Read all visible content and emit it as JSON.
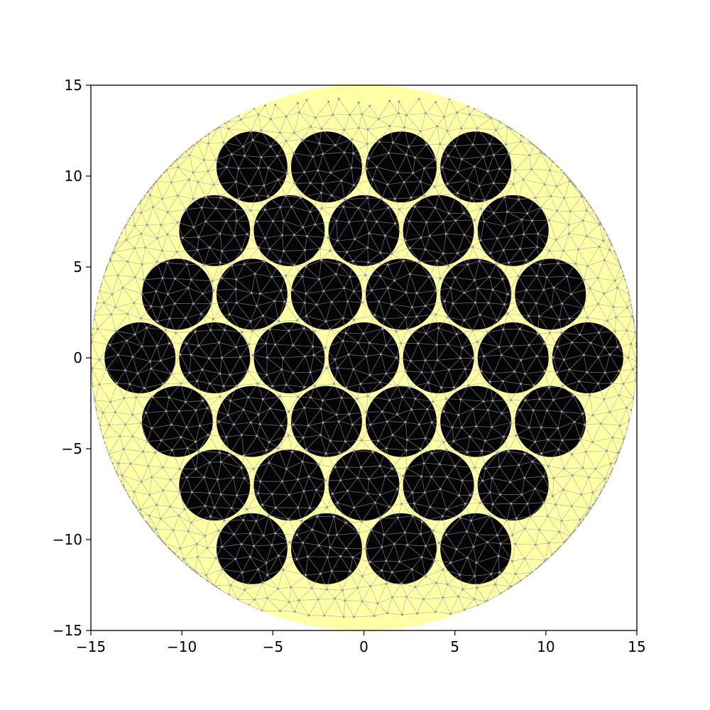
{
  "chart_data": {
    "type": "scatter",
    "title": "",
    "xlabel": "",
    "ylabel": "",
    "xlim": [
      -15,
      15
    ],
    "ylim": [
      -15,
      15
    ],
    "grid": false,
    "xticks": [
      "−15",
      "−10",
      "−5",
      "0",
      "5",
      "10",
      "15"
    ],
    "yticks": [
      "15",
      "10",
      "5",
      "0",
      "−5",
      "−10",
      "−15"
    ],
    "xtick_values": [
      -15,
      -10,
      -5,
      0,
      5,
      10,
      15
    ],
    "ytick_values": [
      15,
      10,
      5,
      0,
      -5,
      -10,
      -15
    ],
    "domain": {
      "shape": "circle",
      "center": [
        0,
        0
      ],
      "radius": 15,
      "color": "#ffffa6"
    },
    "inclusions": {
      "radius": 1.95,
      "color": "#050508",
      "lattice_spacing": 4.1,
      "centers": [
        [
          -2.05,
          10.5
        ],
        [
          2.05,
          10.5
        ],
        [
          -6.15,
          10.5
        ],
        [
          6.15,
          10.5
        ],
        [
          -8.2,
          7
        ],
        [
          -4.1,
          7
        ],
        [
          0,
          7
        ],
        [
          4.1,
          7
        ],
        [
          8.2,
          7
        ],
        [
          -10.25,
          3.5
        ],
        [
          -6.15,
          3.5
        ],
        [
          -2.05,
          3.5
        ],
        [
          2.05,
          3.5
        ],
        [
          6.15,
          3.5
        ],
        [
          10.25,
          3.5
        ],
        [
          -12.3,
          0
        ],
        [
          -8.2,
          0
        ],
        [
          -4.1,
          0
        ],
        [
          0,
          0
        ],
        [
          4.1,
          0
        ],
        [
          8.2,
          0
        ],
        [
          12.3,
          0
        ],
        [
          -10.25,
          -3.5
        ],
        [
          -6.15,
          -3.5
        ],
        [
          -2.05,
          -3.5
        ],
        [
          2.05,
          -3.5
        ],
        [
          6.15,
          -3.5
        ],
        [
          10.25,
          -3.5
        ],
        [
          -8.2,
          -7
        ],
        [
          -4.1,
          -7
        ],
        [
          0,
          -7
        ],
        [
          4.1,
          -7
        ],
        [
          8.2,
          -7
        ],
        [
          -2.05,
          -10.5
        ],
        [
          2.05,
          -10.5
        ],
        [
          -6.15,
          -10.5
        ],
        [
          6.15,
          -10.5
        ]
      ]
    },
    "mesh_color": "#a0a0a0"
  }
}
